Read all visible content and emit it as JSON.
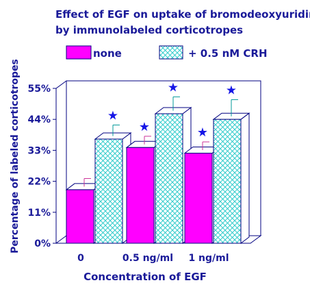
{
  "chart_data": {
    "type": "bar",
    "title_lines": [
      "Effect of EGF on uptake of bromodeoxyuridine",
      "by immunolabeled corticotropes"
    ],
    "xlabel": "Concentration of EGF",
    "ylabel": "Percentage of labeled corticotropes",
    "categories": [
      "0",
      "0.5 ng/ml",
      "1 ng/ml"
    ],
    "ylim": [
      0,
      55
    ],
    "yticks": [
      0,
      11,
      22,
      33,
      44,
      55
    ],
    "ytick_labels": [
      "0%",
      "11%",
      "22%",
      "33%",
      "44%",
      "55%"
    ],
    "style": "3d",
    "legend_position": "top",
    "significance_symbol": "★",
    "series": [
      {
        "name": "none",
        "fill": "magenta",
        "color": "#ff00ff",
        "values": [
          19,
          34,
          32
        ],
        "errors": [
          4,
          4,
          4
        ],
        "significant": [
          false,
          true,
          true
        ]
      },
      {
        "name": "+ 0.5 nM CRH",
        "fill": "crosshatch",
        "color": "#00cccc",
        "values": [
          37,
          46,
          44
        ],
        "errors": [
          5,
          6,
          7
        ],
        "significant": [
          true,
          true,
          true
        ]
      }
    ]
  },
  "colors": {
    "text": "#1a1a99",
    "axis": "#000080",
    "star": "#1515e6",
    "error_bar_none": "#cc3399",
    "error_bar_crh": "#009999",
    "hatch": "#33cccc"
  }
}
